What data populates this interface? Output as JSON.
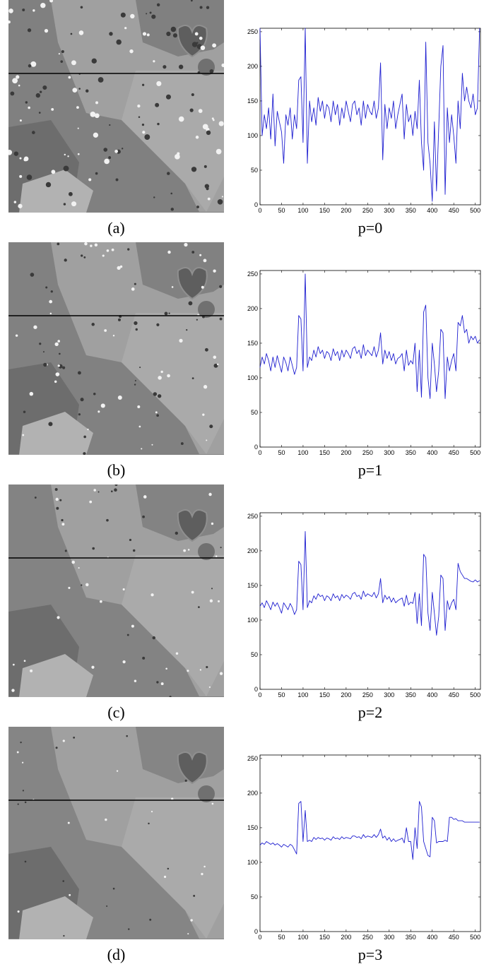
{
  "panels": [
    {
      "letter": "(a)",
      "p_label": "p=0"
    },
    {
      "letter": "(b)",
      "p_label": "p=1"
    },
    {
      "letter": "(c)",
      "p_label": "p=2"
    },
    {
      "letter": "(d)",
      "p_label": "p=3"
    }
  ],
  "chart_data": [
    {
      "type": "line",
      "xlim": [
        0,
        512
      ],
      "ylim": [
        0,
        255
      ],
      "xticks": [
        0,
        50,
        100,
        150,
        200,
        250,
        300,
        350,
        400,
        450,
        500
      ],
      "yticks": [
        0,
        50,
        100,
        150,
        200,
        250
      ],
      "grid": false,
      "line_color": "#1f1fd0",
      "x": [
        0,
        5,
        10,
        15,
        20,
        25,
        30,
        35,
        40,
        45,
        50,
        55,
        60,
        65,
        70,
        75,
        80,
        85,
        90,
        95,
        100,
        105,
        110,
        115,
        120,
        125,
        130,
        135,
        140,
        145,
        150,
        155,
        160,
        165,
        170,
        175,
        180,
        185,
        190,
        195,
        200,
        205,
        210,
        215,
        220,
        225,
        230,
        235,
        240,
        245,
        250,
        255,
        260,
        265,
        270,
        275,
        280,
        285,
        290,
        295,
        300,
        305,
        310,
        315,
        320,
        325,
        330,
        335,
        340,
        345,
        350,
        355,
        360,
        365,
        370,
        375,
        380,
        385,
        390,
        395,
        400,
        405,
        410,
        415,
        420,
        425,
        430,
        435,
        440,
        445,
        450,
        455,
        460,
        465,
        470,
        475,
        480,
        485,
        490,
        495,
        500,
        505,
        510
      ],
      "y": [
        255,
        100,
        130,
        110,
        140,
        95,
        160,
        85,
        135,
        120,
        105,
        60,
        130,
        115,
        140,
        95,
        130,
        110,
        180,
        185,
        90,
        255,
        60,
        150,
        120,
        140,
        115,
        155,
        135,
        150,
        125,
        145,
        140,
        120,
        150,
        130,
        145,
        115,
        140,
        125,
        150,
        135,
        120,
        145,
        150,
        130,
        140,
        115,
        150,
        125,
        145,
        135,
        130,
        150,
        125,
        140,
        205,
        65,
        145,
        110,
        140,
        125,
        150,
        110,
        130,
        145,
        160,
        95,
        145,
        120,
        130,
        100,
        135,
        110,
        180,
        90,
        50,
        235,
        90,
        60,
        5,
        120,
        20,
        110,
        200,
        230,
        15,
        140,
        90,
        130,
        100,
        60,
        150,
        110,
        190,
        150,
        170,
        150,
        140,
        160,
        130,
        140,
        255
      ]
    },
    {
      "type": "line",
      "xlim": [
        0,
        512
      ],
      "ylim": [
        0,
        255
      ],
      "xticks": [
        0,
        50,
        100,
        150,
        200,
        250,
        300,
        350,
        400,
        450,
        500
      ],
      "yticks": [
        0,
        50,
        100,
        150,
        200,
        250
      ],
      "grid": false,
      "line_color": "#1f1fd0",
      "x": [
        0,
        5,
        10,
        15,
        20,
        25,
        30,
        35,
        40,
        45,
        50,
        55,
        60,
        65,
        70,
        75,
        80,
        85,
        90,
        95,
        100,
        105,
        110,
        115,
        120,
        125,
        130,
        135,
        140,
        145,
        150,
        155,
        160,
        165,
        170,
        175,
        180,
        185,
        190,
        195,
        200,
        205,
        210,
        215,
        220,
        225,
        230,
        235,
        240,
        245,
        250,
        255,
        260,
        265,
        270,
        275,
        280,
        285,
        290,
        295,
        300,
        305,
        310,
        315,
        320,
        325,
        330,
        335,
        340,
        345,
        350,
        355,
        360,
        365,
        370,
        375,
        380,
        385,
        390,
        395,
        400,
        405,
        410,
        415,
        420,
        425,
        430,
        435,
        440,
        445,
        450,
        455,
        460,
        465,
        470,
        475,
        480,
        485,
        490,
        495,
        500,
        505,
        510
      ],
      "y": [
        115,
        130,
        120,
        135,
        125,
        110,
        130,
        115,
        132,
        120,
        108,
        130,
        122,
        110,
        130,
        118,
        105,
        115,
        190,
        185,
        110,
        250,
        115,
        130,
        125,
        140,
        130,
        145,
        135,
        140,
        128,
        138,
        135,
        125,
        142,
        132,
        138,
        125,
        140,
        130,
        140,
        135,
        128,
        142,
        145,
        135,
        140,
        128,
        148,
        132,
        140,
        136,
        132,
        145,
        130,
        140,
        165,
        120,
        140,
        128,
        138,
        125,
        135,
        120,
        128,
        130,
        135,
        110,
        140,
        118,
        125,
        120,
        150,
        80,
        140,
        72,
        195,
        205,
        100,
        70,
        150,
        120,
        80,
        110,
        170,
        165,
        70,
        130,
        110,
        125,
        135,
        110,
        180,
        175,
        190,
        165,
        170,
        150,
        160,
        155,
        160,
        150,
        155
      ]
    },
    {
      "type": "line",
      "xlim": [
        0,
        512
      ],
      "ylim": [
        0,
        255
      ],
      "xticks": [
        0,
        50,
        100,
        150,
        200,
        250,
        300,
        350,
        400,
        450,
        500
      ],
      "yticks": [
        0,
        50,
        100,
        150,
        200,
        250
      ],
      "grid": false,
      "line_color": "#1f1fd0",
      "x": [
        0,
        5,
        10,
        15,
        20,
        25,
        30,
        35,
        40,
        45,
        50,
        55,
        60,
        65,
        70,
        75,
        80,
        85,
        90,
        95,
        100,
        105,
        110,
        115,
        120,
        125,
        130,
        135,
        140,
        145,
        150,
        155,
        160,
        165,
        170,
        175,
        180,
        185,
        190,
        195,
        200,
        205,
        210,
        215,
        220,
        225,
        230,
        235,
        240,
        245,
        250,
        255,
        260,
        265,
        270,
        275,
        280,
        285,
        290,
        295,
        300,
        305,
        310,
        315,
        320,
        325,
        330,
        335,
        340,
        345,
        350,
        355,
        360,
        365,
        370,
        375,
        380,
        385,
        390,
        395,
        400,
        405,
        410,
        415,
        420,
        425,
        430,
        435,
        440,
        445,
        450,
        455,
        460,
        465,
        470,
        475,
        480,
        485,
        490,
        495,
        500,
        505,
        510
      ],
      "y": [
        120,
        125,
        118,
        128,
        122,
        115,
        126,
        120,
        125,
        118,
        110,
        125,
        120,
        115,
        124,
        118,
        108,
        115,
        185,
        180,
        115,
        228,
        118,
        128,
        125,
        135,
        130,
        138,
        134,
        136,
        128,
        135,
        133,
        128,
        138,
        132,
        135,
        128,
        137,
        132,
        136,
        134,
        130,
        138,
        140,
        134,
        136,
        130,
        142,
        134,
        138,
        136,
        134,
        140,
        132,
        138,
        160,
        125,
        136,
        130,
        134,
        126,
        132,
        125,
        128,
        130,
        132,
        120,
        136,
        122,
        126,
        124,
        140,
        95,
        138,
        92,
        195,
        190,
        110,
        85,
        140,
        110,
        78,
        105,
        165,
        160,
        85,
        128,
        115,
        125,
        130,
        115,
        182,
        170,
        165,
        160,
        160,
        158,
        156,
        155,
        158,
        155,
        157
      ]
    },
    {
      "type": "line",
      "xlim": [
        0,
        512
      ],
      "ylim": [
        0,
        255
      ],
      "xticks": [
        0,
        50,
        100,
        150,
        200,
        250,
        300,
        350,
        400,
        450,
        500
      ],
      "yticks": [
        0,
        50,
        100,
        150,
        200,
        250
      ],
      "grid": false,
      "line_color": "#1f1fd0",
      "x": [
        0,
        5,
        10,
        15,
        20,
        25,
        30,
        35,
        40,
        45,
        50,
        55,
        60,
        65,
        70,
        75,
        80,
        85,
        90,
        95,
        100,
        105,
        110,
        115,
        120,
        125,
        130,
        135,
        140,
        145,
        150,
        155,
        160,
        165,
        170,
        175,
        180,
        185,
        190,
        195,
        200,
        205,
        210,
        215,
        220,
        225,
        230,
        235,
        240,
        245,
        250,
        255,
        260,
        265,
        270,
        275,
        280,
        285,
        290,
        295,
        300,
        305,
        310,
        315,
        320,
        325,
        330,
        335,
        340,
        345,
        350,
        355,
        360,
        365,
        370,
        375,
        380,
        385,
        390,
        395,
        400,
        405,
        410,
        415,
        420,
        425,
        430,
        435,
        440,
        445,
        450,
        455,
        460,
        465,
        470,
        475,
        480,
        485,
        490,
        495,
        500,
        505,
        510
      ],
      "y": [
        125,
        128,
        126,
        130,
        128,
        126,
        128,
        125,
        127,
        125,
        122,
        126,
        124,
        122,
        126,
        124,
        118,
        112,
        185,
        188,
        130,
        175,
        130,
        132,
        130,
        136,
        133,
        136,
        134,
        135,
        132,
        135,
        134,
        132,
        137,
        134,
        135,
        133,
        137,
        134,
        136,
        135,
        134,
        138,
        138,
        136,
        137,
        134,
        140,
        136,
        138,
        137,
        136,
        140,
        136,
        140,
        148,
        135,
        138,
        132,
        136,
        130,
        134,
        130,
        132,
        133,
        135,
        128,
        150,
        130,
        130,
        104,
        150,
        120,
        188,
        180,
        130,
        120,
        110,
        108,
        165,
        160,
        128,
        130,
        130,
        130,
        132,
        130,
        165,
        165,
        162,
        163,
        160,
        160,
        160,
        158,
        158,
        158,
        158,
        158,
        158,
        158,
        158
      ]
    }
  ],
  "ct_images": [
    {
      "grey_level": "#808080",
      "speckle": 1.0
    },
    {
      "grey_level": "#818181",
      "speckle": 0.7
    },
    {
      "grey_level": "#838383",
      "speckle": 0.45
    },
    {
      "grey_level": "#858585",
      "speckle": 0.25
    }
  ]
}
